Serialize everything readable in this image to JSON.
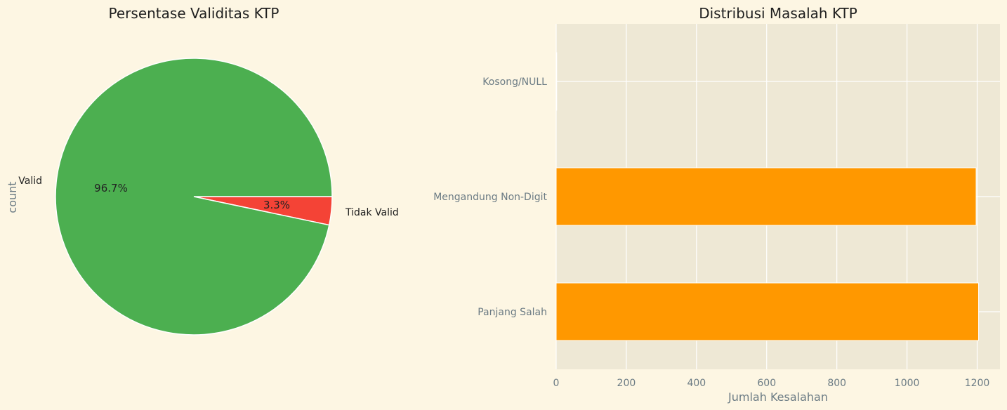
{
  "chart_data": [
    {
      "type": "pie",
      "title": "Persentase Validitas KTP",
      "ylabel": "count",
      "labels": [
        "Valid",
        "Tidak Valid"
      ],
      "values": [
        96.7,
        3.3
      ],
      "pct_labels": [
        "96.7%",
        "3.3%"
      ],
      "colors": [
        "#4caf50",
        "#f44336"
      ]
    },
    {
      "type": "bar",
      "orientation": "horizontal",
      "title": "Distribusi Masalah KTP",
      "xlabel": "Jumlah Kesalahan",
      "ylabel": "",
      "categories": [
        "Kosong/NULL",
        "Mengandung Non-Digit",
        "Panjang Salah"
      ],
      "values": [
        1,
        1197,
        1204
      ],
      "xlim": [
        0,
        1265
      ],
      "xticks": [
        0,
        200,
        400,
        600,
        800,
        1000,
        1200
      ],
      "xtick_labels": [
        "0",
        "200",
        "400",
        "600",
        "800",
        "1000",
        "1200"
      ],
      "color": "#ff9800",
      "grid": true
    }
  ]
}
